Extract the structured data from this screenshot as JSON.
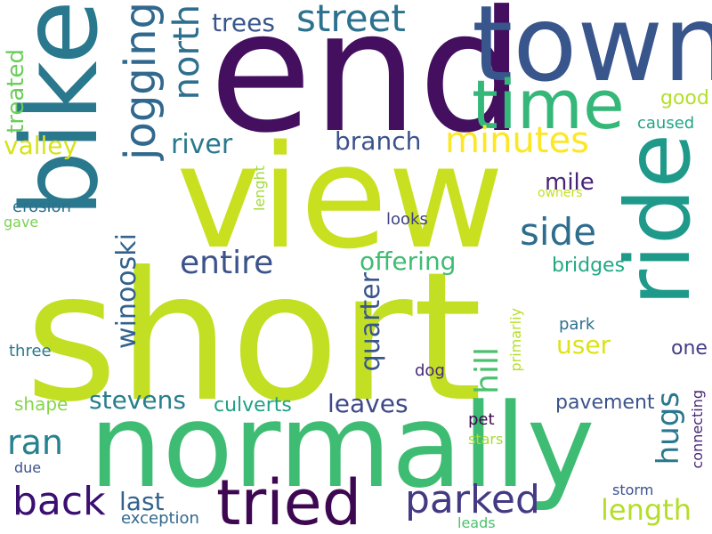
{
  "words": [
    {
      "text": "short",
      "color": "#c2df23"
    },
    {
      "text": "end",
      "color": "#440f5f"
    },
    {
      "text": "view",
      "color": "#c8e020"
    },
    {
      "text": "bike",
      "color": "#2a788e"
    },
    {
      "text": "town",
      "color": "#39568c"
    },
    {
      "text": "normally",
      "color": "#3fbc73"
    },
    {
      "text": "ride",
      "color": "#1f9a8a"
    },
    {
      "text": "time",
      "color": "#35b779"
    },
    {
      "text": "tried",
      "color": "#3e0751"
    },
    {
      "text": "jogging",
      "color": "#31688e"
    },
    {
      "text": "street",
      "color": "#2c728e"
    },
    {
      "text": "north",
      "color": "#2d708e"
    },
    {
      "text": "minutes",
      "color": "#fde725"
    },
    {
      "text": "back",
      "color": "#3b0f70"
    },
    {
      "text": "parked",
      "color": "#443a83"
    },
    {
      "text": "side",
      "color": "#2e6d8e"
    },
    {
      "text": "entire",
      "color": "#3b528b"
    },
    {
      "text": "ran",
      "color": "#26828e"
    },
    {
      "text": "offering",
      "color": "#3fbc73"
    },
    {
      "text": "length",
      "color": "#b5de2b"
    },
    {
      "text": "hugs",
      "color": "#2a788e"
    },
    {
      "text": "stevens",
      "color": "#277f8e"
    },
    {
      "text": "hill",
      "color": "#4ac16d"
    },
    {
      "text": "winooski",
      "color": "#33638d"
    },
    {
      "text": "quarter",
      "color": "#39568c"
    },
    {
      "text": "branch",
      "color": "#3b528b"
    },
    {
      "text": "river",
      "color": "#2a788e"
    },
    {
      "text": "valley",
      "color": "#d8e219"
    },
    {
      "text": "leaves",
      "color": "#3e4989"
    },
    {
      "text": "culverts",
      "color": "#1fa088"
    },
    {
      "text": "trees",
      "color": "#39568c"
    },
    {
      "text": "mile",
      "color": "#482475"
    },
    {
      "text": "treated",
      "color": "#6ccd5a"
    },
    {
      "text": "user",
      "color": "#dde318"
    },
    {
      "text": "bridges",
      "color": "#22a884"
    },
    {
      "text": "pavement",
      "color": "#3b528b"
    },
    {
      "text": "last",
      "color": "#33638d"
    },
    {
      "text": "good",
      "color": "#b5de2b"
    },
    {
      "text": "caused",
      "color": "#21a685"
    },
    {
      "text": "one",
      "color": "#433e85"
    },
    {
      "text": "shape",
      "color": "#86d549"
    },
    {
      "text": "three",
      "color": "#2a788e"
    },
    {
      "text": "erosion",
      "color": "#2d708e"
    },
    {
      "text": "gave",
      "color": "#7ad151"
    },
    {
      "text": "looks",
      "color": "#404387"
    },
    {
      "text": "dog",
      "color": "#482878"
    },
    {
      "text": "park",
      "color": "#2d708e"
    },
    {
      "text": "owners",
      "color": "#c2df23"
    },
    {
      "text": "lenght",
      "color": "#a2da37"
    },
    {
      "text": "primarliy",
      "color": "#b5de2b"
    },
    {
      "text": "pet",
      "color": "#3e0751"
    },
    {
      "text": "stars",
      "color": "#a8db34"
    },
    {
      "text": "due",
      "color": "#3b528b"
    },
    {
      "text": "exception",
      "color": "#31688e"
    },
    {
      "text": "leads",
      "color": "#4ac16d"
    },
    {
      "text": "storm",
      "color": "#3b528b"
    },
    {
      "text": "connecting",
      "color": "#482475"
    }
  ]
}
